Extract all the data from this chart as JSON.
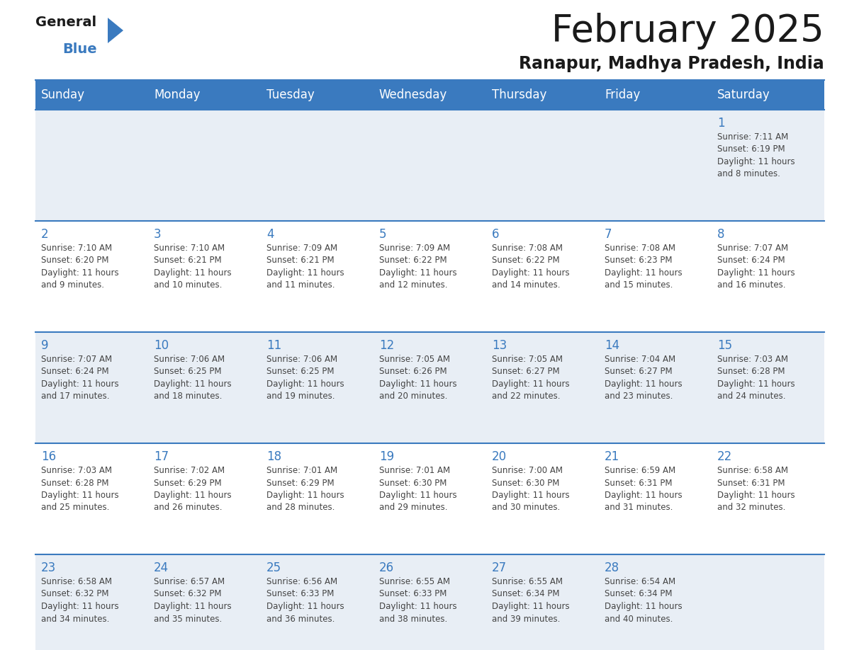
{
  "title": "February 2025",
  "subtitle": "Ranapur, Madhya Pradesh, India",
  "header_color": "#3a7abf",
  "header_text_color": "#ffffff",
  "bg_color": "#ffffff",
  "cell_bg_even": "#e8eef5",
  "cell_bg_odd": "#ffffff",
  "day_headers": [
    "Sunday",
    "Monday",
    "Tuesday",
    "Wednesday",
    "Thursday",
    "Friday",
    "Saturday"
  ],
  "days": [
    {
      "day": 1,
      "col": 6,
      "row": 0,
      "sunrise": "7:11 AM",
      "sunset": "6:19 PM",
      "daylight": "11 hours and 8 minutes."
    },
    {
      "day": 2,
      "col": 0,
      "row": 1,
      "sunrise": "7:10 AM",
      "sunset": "6:20 PM",
      "daylight": "11 hours and 9 minutes."
    },
    {
      "day": 3,
      "col": 1,
      "row": 1,
      "sunrise": "7:10 AM",
      "sunset": "6:21 PM",
      "daylight": "11 hours and 10 minutes."
    },
    {
      "day": 4,
      "col": 2,
      "row": 1,
      "sunrise": "7:09 AM",
      "sunset": "6:21 PM",
      "daylight": "11 hours and 11 minutes."
    },
    {
      "day": 5,
      "col": 3,
      "row": 1,
      "sunrise": "7:09 AM",
      "sunset": "6:22 PM",
      "daylight": "11 hours and 12 minutes."
    },
    {
      "day": 6,
      "col": 4,
      "row": 1,
      "sunrise": "7:08 AM",
      "sunset": "6:22 PM",
      "daylight": "11 hours and 14 minutes."
    },
    {
      "day": 7,
      "col": 5,
      "row": 1,
      "sunrise": "7:08 AM",
      "sunset": "6:23 PM",
      "daylight": "11 hours and 15 minutes."
    },
    {
      "day": 8,
      "col": 6,
      "row": 1,
      "sunrise": "7:07 AM",
      "sunset": "6:24 PM",
      "daylight": "11 hours and 16 minutes."
    },
    {
      "day": 9,
      "col": 0,
      "row": 2,
      "sunrise": "7:07 AM",
      "sunset": "6:24 PM",
      "daylight": "11 hours and 17 minutes."
    },
    {
      "day": 10,
      "col": 1,
      "row": 2,
      "sunrise": "7:06 AM",
      "sunset": "6:25 PM",
      "daylight": "11 hours and 18 minutes."
    },
    {
      "day": 11,
      "col": 2,
      "row": 2,
      "sunrise": "7:06 AM",
      "sunset": "6:25 PM",
      "daylight": "11 hours and 19 minutes."
    },
    {
      "day": 12,
      "col": 3,
      "row": 2,
      "sunrise": "7:05 AM",
      "sunset": "6:26 PM",
      "daylight": "11 hours and 20 minutes."
    },
    {
      "day": 13,
      "col": 4,
      "row": 2,
      "sunrise": "7:05 AM",
      "sunset": "6:27 PM",
      "daylight": "11 hours and 22 minutes."
    },
    {
      "day": 14,
      "col": 5,
      "row": 2,
      "sunrise": "7:04 AM",
      "sunset": "6:27 PM",
      "daylight": "11 hours and 23 minutes."
    },
    {
      "day": 15,
      "col": 6,
      "row": 2,
      "sunrise": "7:03 AM",
      "sunset": "6:28 PM",
      "daylight": "11 hours and 24 minutes."
    },
    {
      "day": 16,
      "col": 0,
      "row": 3,
      "sunrise": "7:03 AM",
      "sunset": "6:28 PM",
      "daylight": "11 hours and 25 minutes."
    },
    {
      "day": 17,
      "col": 1,
      "row": 3,
      "sunrise": "7:02 AM",
      "sunset": "6:29 PM",
      "daylight": "11 hours and 26 minutes."
    },
    {
      "day": 18,
      "col": 2,
      "row": 3,
      "sunrise": "7:01 AM",
      "sunset": "6:29 PM",
      "daylight": "11 hours and 28 minutes."
    },
    {
      "day": 19,
      "col": 3,
      "row": 3,
      "sunrise": "7:01 AM",
      "sunset": "6:30 PM",
      "daylight": "11 hours and 29 minutes."
    },
    {
      "day": 20,
      "col": 4,
      "row": 3,
      "sunrise": "7:00 AM",
      "sunset": "6:30 PM",
      "daylight": "11 hours and 30 minutes."
    },
    {
      "day": 21,
      "col": 5,
      "row": 3,
      "sunrise": "6:59 AM",
      "sunset": "6:31 PM",
      "daylight": "11 hours and 31 minutes."
    },
    {
      "day": 22,
      "col": 6,
      "row": 3,
      "sunrise": "6:58 AM",
      "sunset": "6:31 PM",
      "daylight": "11 hours and 32 minutes."
    },
    {
      "day": 23,
      "col": 0,
      "row": 4,
      "sunrise": "6:58 AM",
      "sunset": "6:32 PM",
      "daylight": "11 hours and 34 minutes."
    },
    {
      "day": 24,
      "col": 1,
      "row": 4,
      "sunrise": "6:57 AM",
      "sunset": "6:32 PM",
      "daylight": "11 hours and 35 minutes."
    },
    {
      "day": 25,
      "col": 2,
      "row": 4,
      "sunrise": "6:56 AM",
      "sunset": "6:33 PM",
      "daylight": "11 hours and 36 minutes."
    },
    {
      "day": 26,
      "col": 3,
      "row": 4,
      "sunrise": "6:55 AM",
      "sunset": "6:33 PM",
      "daylight": "11 hours and 38 minutes."
    },
    {
      "day": 27,
      "col": 4,
      "row": 4,
      "sunrise": "6:55 AM",
      "sunset": "6:34 PM",
      "daylight": "11 hours and 39 minutes."
    },
    {
      "day": 28,
      "col": 5,
      "row": 4,
      "sunrise": "6:54 AM",
      "sunset": "6:34 PM",
      "daylight": "11 hours and 40 minutes."
    }
  ],
  "num_rows": 5,
  "num_cols": 7,
  "line_color": "#3a7abf",
  "day_num_color": "#3a7abf",
  "cell_text_color": "#444444",
  "day_num_fontsize": 12,
  "cell_text_fontsize": 8.5,
  "header_fontsize": 12,
  "title_fontsize": 38,
  "subtitle_fontsize": 17
}
